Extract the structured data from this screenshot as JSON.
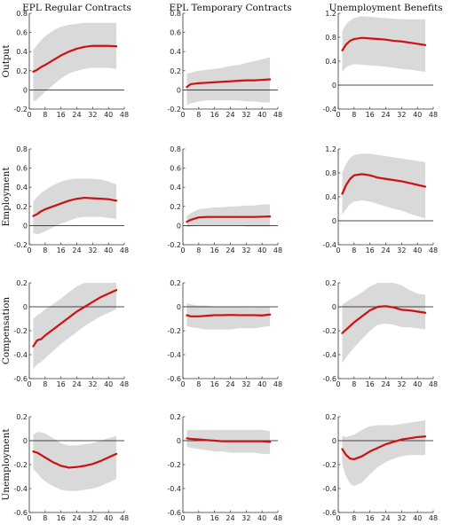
{
  "columns": [
    "EPL Regular Contracts",
    "EPL Temporary Contracts",
    "Unemployment Benefits"
  ],
  "rows": [
    "Output",
    "Employment",
    "Compensation",
    "Unemployment"
  ],
  "colors": {
    "band": "#d9d9d9",
    "line": "#cc1111",
    "zero": "#111111",
    "axis": "#333333"
  },
  "chart_data": [
    {
      "type": "line",
      "row": "Output",
      "column": "EPL Regular Contracts",
      "xlim": [
        0,
        48
      ],
      "ylim": [
        -0.2,
        0.8
      ],
      "xticks": [
        0,
        8,
        16,
        24,
        32,
        40,
        48
      ],
      "yticks": [
        -0.2,
        0,
        0.2,
        0.4,
        0.6,
        0.8
      ],
      "x": [
        2,
        4,
        6,
        8,
        12,
        16,
        20,
        24,
        28,
        32,
        36,
        40,
        44
      ],
      "y": [
        0.19,
        0.21,
        0.24,
        0.26,
        0.31,
        0.36,
        0.4,
        0.43,
        0.45,
        0.46,
        0.46,
        0.46,
        0.455
      ],
      "lower": [
        -0.12,
        -0.1,
        -0.06,
        -0.02,
        0.05,
        0.12,
        0.17,
        0.2,
        0.22,
        0.23,
        0.23,
        0.23,
        0.22
      ],
      "upper": [
        0.42,
        0.47,
        0.52,
        0.56,
        0.62,
        0.66,
        0.68,
        0.69,
        0.7,
        0.7,
        0.7,
        0.7,
        0.7
      ]
    },
    {
      "type": "line",
      "row": "Output",
      "column": "EPL Temporary Contracts",
      "xlim": [
        0,
        48
      ],
      "ylim": [
        -0.2,
        0.8
      ],
      "xticks": [
        0,
        8,
        16,
        24,
        32,
        40,
        48
      ],
      "yticks": [
        -0.2,
        0,
        0.2,
        0.4,
        0.6,
        0.8
      ],
      "x": [
        2,
        4,
        8,
        12,
        16,
        20,
        24,
        28,
        32,
        36,
        40,
        44
      ],
      "y": [
        0.03,
        0.06,
        0.07,
        0.075,
        0.08,
        0.085,
        0.09,
        0.095,
        0.1,
        0.1,
        0.105,
        0.11
      ],
      "lower": [
        -0.16,
        -0.14,
        -0.12,
        -0.11,
        -0.11,
        -0.11,
        -0.11,
        -0.11,
        -0.12,
        -0.12,
        -0.13,
        -0.13
      ],
      "upper": [
        0.17,
        0.18,
        0.2,
        0.21,
        0.22,
        0.23,
        0.25,
        0.26,
        0.28,
        0.3,
        0.32,
        0.34
      ]
    },
    {
      "type": "line",
      "row": "Output",
      "column": "Unemployment Benefits",
      "xlim": [
        0,
        48
      ],
      "ylim": [
        -0.4,
        1.2
      ],
      "xticks": [
        0,
        8,
        16,
        24,
        32,
        40,
        48
      ],
      "yticks": [
        -0.4,
        0,
        0.4,
        0.8,
        1.2
      ],
      "x": [
        2,
        4,
        6,
        8,
        12,
        16,
        20,
        24,
        28,
        32,
        36,
        40,
        44
      ],
      "y": [
        0.58,
        0.68,
        0.74,
        0.77,
        0.79,
        0.78,
        0.77,
        0.76,
        0.74,
        0.73,
        0.71,
        0.69,
        0.67
      ],
      "lower": [
        0.22,
        0.3,
        0.33,
        0.35,
        0.34,
        0.33,
        0.32,
        0.31,
        0.29,
        0.27,
        0.26,
        0.24,
        0.22
      ],
      "upper": [
        0.9,
        1.02,
        1.08,
        1.12,
        1.15,
        1.14,
        1.13,
        1.12,
        1.11,
        1.1,
        1.1,
        1.1,
        1.1
      ]
    },
    {
      "type": "line",
      "row": "Employment",
      "column": "EPL Regular Contracts",
      "xlim": [
        0,
        48
      ],
      "ylim": [
        -0.2,
        0.8
      ],
      "xticks": [
        0,
        8,
        16,
        24,
        32,
        40,
        48
      ],
      "yticks": [
        -0.2,
        0,
        0.2,
        0.4,
        0.6,
        0.8
      ],
      "x": [
        2,
        4,
        6,
        8,
        12,
        16,
        20,
        24,
        28,
        32,
        36,
        40,
        44
      ],
      "y": [
        0.1,
        0.12,
        0.15,
        0.17,
        0.2,
        0.23,
        0.26,
        0.28,
        0.29,
        0.285,
        0.28,
        0.275,
        0.26
      ],
      "lower": [
        -0.08,
        -0.09,
        -0.08,
        -0.06,
        -0.02,
        0.02,
        0.05,
        0.08,
        0.09,
        0.09,
        0.09,
        0.08,
        0.07
      ],
      "upper": [
        0.25,
        0.3,
        0.34,
        0.37,
        0.42,
        0.46,
        0.48,
        0.49,
        0.49,
        0.49,
        0.48,
        0.46,
        0.43
      ]
    },
    {
      "type": "line",
      "row": "Employment",
      "column": "EPL Temporary Contracts",
      "xlim": [
        0,
        48
      ],
      "ylim": [
        -0.2,
        0.8
      ],
      "xticks": [
        0,
        8,
        16,
        24,
        32,
        40,
        48
      ],
      "yticks": [
        -0.2,
        0,
        0.2,
        0.4,
        0.6,
        0.8
      ],
      "x": [
        2,
        4,
        8,
        12,
        16,
        20,
        24,
        28,
        32,
        36,
        40,
        44
      ],
      "y": [
        0.04,
        0.06,
        0.085,
        0.09,
        0.09,
        0.09,
        0.09,
        0.09,
        0.09,
        0.09,
        0.092,
        0.095
      ],
      "lower": [
        -0.02,
        -0.01,
        0.0,
        0.0,
        0.0,
        0.0,
        0.0,
        0.0,
        -0.01,
        -0.01,
        -0.01,
        -0.01
      ],
      "upper": [
        0.1,
        0.13,
        0.17,
        0.18,
        0.19,
        0.19,
        0.2,
        0.2,
        0.21,
        0.21,
        0.22,
        0.22
      ]
    },
    {
      "type": "line",
      "row": "Employment",
      "column": "Unemployment Benefits",
      "xlim": [
        0,
        48
      ],
      "ylim": [
        -0.4,
        1.2
      ],
      "xticks": [
        0,
        8,
        16,
        24,
        32,
        40,
        48
      ],
      "yticks": [
        -0.4,
        0,
        0.4,
        0.8,
        1.2
      ],
      "x": [
        2,
        4,
        6,
        8,
        12,
        16,
        20,
        24,
        28,
        32,
        36,
        40,
        44
      ],
      "y": [
        0.45,
        0.6,
        0.7,
        0.76,
        0.78,
        0.76,
        0.72,
        0.7,
        0.68,
        0.66,
        0.63,
        0.6,
        0.57
      ],
      "lower": [
        0.1,
        0.2,
        0.28,
        0.32,
        0.34,
        0.32,
        0.28,
        0.24,
        0.2,
        0.17,
        0.12,
        0.08,
        0.04
      ],
      "upper": [
        0.8,
        0.95,
        1.05,
        1.1,
        1.12,
        1.12,
        1.1,
        1.08,
        1.06,
        1.04,
        1.02,
        1.0,
        0.98
      ]
    },
    {
      "type": "line",
      "row": "Compensation",
      "column": "EPL Regular Contracts",
      "xlim": [
        0,
        48
      ],
      "ylim": [
        -0.6,
        0.2
      ],
      "xticks": [
        0,
        8,
        16,
        24,
        32,
        40,
        48
      ],
      "yticks": [
        -0.6,
        -0.4,
        -0.2,
        0,
        0.2
      ],
      "x": [
        2,
        4,
        6,
        8,
        12,
        16,
        20,
        24,
        28,
        32,
        36,
        40,
        44
      ],
      "y": [
        -0.33,
        -0.28,
        -0.27,
        -0.24,
        -0.19,
        -0.14,
        -0.09,
        -0.04,
        0.0,
        0.04,
        0.08,
        0.11,
        0.14
      ],
      "lower": [
        -0.52,
        -0.48,
        -0.46,
        -0.43,
        -0.37,
        -0.31,
        -0.26,
        -0.21,
        -0.16,
        -0.12,
        -0.08,
        -0.05,
        -0.02
      ],
      "upper": [
        -0.1,
        -0.07,
        -0.05,
        -0.02,
        0.02,
        0.07,
        0.12,
        0.17,
        0.2,
        0.2,
        0.2,
        0.2,
        0.2
      ]
    },
    {
      "type": "line",
      "row": "Compensation",
      "column": "EPL Temporary Contracts",
      "xlim": [
        0,
        48
      ],
      "ylim": [
        -0.6,
        0.2
      ],
      "xticks": [
        0,
        8,
        16,
        24,
        32,
        40,
        48
      ],
      "yticks": [
        -0.6,
        -0.4,
        -0.2,
        0,
        0.2
      ],
      "x": [
        2,
        4,
        8,
        12,
        16,
        20,
        24,
        28,
        32,
        36,
        40,
        44
      ],
      "y": [
        -0.07,
        -0.08,
        -0.08,
        -0.075,
        -0.07,
        -0.07,
        -0.068,
        -0.07,
        -0.07,
        -0.07,
        -0.072,
        -0.065
      ],
      "lower": [
        -0.16,
        -0.17,
        -0.18,
        -0.19,
        -0.19,
        -0.19,
        -0.19,
        -0.18,
        -0.18,
        -0.18,
        -0.17,
        -0.16
      ],
      "upper": [
        0.03,
        0.02,
        0.01,
        0.01,
        0.0,
        0.0,
        0.0,
        0.0,
        -0.005,
        -0.005,
        0.0,
        0.0
      ]
    },
    {
      "type": "line",
      "row": "Compensation",
      "column": "Unemployment Benefits",
      "xlim": [
        0,
        48
      ],
      "ylim": [
        -0.6,
        0.2
      ],
      "xticks": [
        0,
        8,
        16,
        24,
        32,
        40,
        48
      ],
      "yticks": [
        -0.6,
        -0.4,
        -0.2,
        0,
        0.2
      ],
      "x": [
        2,
        4,
        6,
        8,
        12,
        16,
        20,
        24,
        28,
        32,
        36,
        40,
        44
      ],
      "y": [
        -0.22,
        -0.19,
        -0.16,
        -0.13,
        -0.08,
        -0.03,
        0.0,
        0.005,
        -0.005,
        -0.025,
        -0.03,
        -0.04,
        -0.05
      ],
      "lower": [
        -0.47,
        -0.42,
        -0.38,
        -0.34,
        -0.27,
        -0.2,
        -0.15,
        -0.14,
        -0.15,
        -0.17,
        -0.17,
        -0.18,
        -0.19
      ],
      "upper": [
        0.02,
        0.04,
        0.06,
        0.08,
        0.12,
        0.17,
        0.2,
        0.2,
        0.2,
        0.18,
        0.14,
        0.11,
        0.1
      ]
    },
    {
      "type": "line",
      "row": "Unemployment",
      "column": "EPL Regular Contracts",
      "xlim": [
        0,
        48
      ],
      "ylim": [
        -0.6,
        0.2
      ],
      "xticks": [
        0,
        8,
        16,
        24,
        32,
        40,
        48
      ],
      "yticks": [
        -0.6,
        -0.4,
        -0.2,
        0,
        0.2
      ],
      "x": [
        2,
        4,
        6,
        8,
        12,
        16,
        20,
        24,
        28,
        32,
        36,
        40,
        44
      ],
      "y": [
        -0.09,
        -0.1,
        -0.12,
        -0.14,
        -0.18,
        -0.21,
        -0.225,
        -0.22,
        -0.21,
        -0.195,
        -0.17,
        -0.14,
        -0.11
      ],
      "lower": [
        -0.24,
        -0.27,
        -0.31,
        -0.34,
        -0.38,
        -0.41,
        -0.42,
        -0.42,
        -0.41,
        -0.4,
        -0.38,
        -0.35,
        -0.32
      ],
      "upper": [
        0.05,
        0.07,
        0.07,
        0.06,
        0.02,
        -0.02,
        -0.04,
        -0.04,
        -0.03,
        -0.02,
        0.0,
        0.02,
        0.04
      ]
    },
    {
      "type": "line",
      "row": "Unemployment",
      "column": "EPL Temporary Contracts",
      "xlim": [
        0,
        48
      ],
      "ylim": [
        -0.6,
        0.2
      ],
      "xticks": [
        0,
        8,
        16,
        24,
        32,
        40,
        48
      ],
      "yticks": [
        -0.6,
        -0.4,
        -0.2,
        0,
        0.2
      ],
      "x": [
        2,
        4,
        8,
        12,
        16,
        20,
        24,
        28,
        32,
        36,
        40,
        44
      ],
      "y": [
        0.02,
        0.015,
        0.01,
        0.005,
        0.0,
        -0.005,
        -0.005,
        -0.005,
        -0.005,
        -0.005,
        -0.005,
        -0.01
      ],
      "lower": [
        -0.05,
        -0.06,
        -0.07,
        -0.08,
        -0.09,
        -0.09,
        -0.1,
        -0.1,
        -0.1,
        -0.1,
        -0.11,
        -0.11
      ],
      "upper": [
        0.09,
        0.09,
        0.09,
        0.09,
        0.09,
        0.09,
        0.09,
        0.09,
        0.09,
        0.09,
        0.09,
        0.08
      ]
    },
    {
      "type": "line",
      "row": "Unemployment",
      "column": "Unemployment Benefits",
      "xlim": [
        0,
        48
      ],
      "ylim": [
        -0.6,
        0.2
      ],
      "xticks": [
        0,
        8,
        16,
        24,
        32,
        40,
        48
      ],
      "yticks": [
        -0.6,
        -0.4,
        -0.2,
        0,
        0.2
      ],
      "x": [
        2,
        4,
        6,
        8,
        12,
        16,
        20,
        24,
        28,
        32,
        36,
        40,
        44
      ],
      "y": [
        -0.07,
        -0.12,
        -0.15,
        -0.155,
        -0.13,
        -0.09,
        -0.06,
        -0.03,
        -0.01,
        0.01,
        0.02,
        0.03,
        0.035
      ],
      "lower": [
        -0.2,
        -0.3,
        -0.36,
        -0.38,
        -0.35,
        -0.28,
        -0.22,
        -0.18,
        -0.15,
        -0.13,
        -0.12,
        -0.12,
        -0.12
      ],
      "upper": [
        0.04,
        0.03,
        0.04,
        0.05,
        0.09,
        0.12,
        0.13,
        0.13,
        0.13,
        0.14,
        0.15,
        0.16,
        0.17
      ]
    }
  ]
}
